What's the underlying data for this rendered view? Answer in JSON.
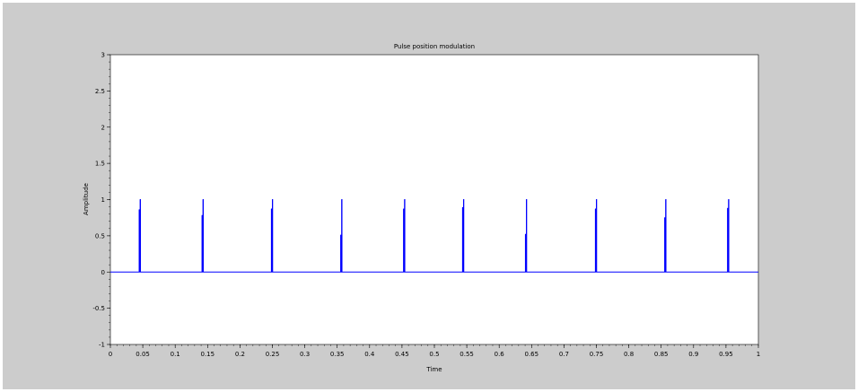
{
  "chart_data": {
    "type": "line",
    "title": "Pulse position modulation",
    "xlabel": "Time",
    "ylabel": "Amplitude",
    "xlim": [
      0,
      1
    ],
    "ylim": [
      -1,
      3
    ],
    "x_ticks": [
      "0",
      "0.05",
      "0.1",
      "0.15",
      "0.2",
      "0.25",
      "0.3",
      "0.35",
      "0.4",
      "0.45",
      "0.5",
      "0.55",
      "0.6",
      "0.65",
      "0.7",
      "0.75",
      "0.8",
      "0.85",
      "0.9",
      "0.95",
      "1"
    ],
    "y_ticks": [
      "-1",
      "-0.5",
      "0",
      "0.5",
      "1",
      "1.5",
      "2",
      "2.5",
      "3"
    ],
    "grid": false,
    "series": [
      {
        "color": "#0000ff",
        "pulses": [
          {
            "t": 0.046,
            "peak": 1.0,
            "sub": 0.86
          },
          {
            "t": 0.143,
            "peak": 1.0,
            "sub": 0.78
          },
          {
            "t": 0.25,
            "peak": 1.0,
            "sub": 0.87
          },
          {
            "t": 0.357,
            "peak": 1.0,
            "sub": 0.51
          },
          {
            "t": 0.454,
            "peak": 1.0,
            "sub": 0.87
          },
          {
            "t": 0.545,
            "peak": 1.0,
            "sub": 0.89
          },
          {
            "t": 0.642,
            "peak": 1.0,
            "sub": 0.52
          },
          {
            "t": 0.75,
            "peak": 1.0,
            "sub": 0.87
          },
          {
            "t": 0.857,
            "peak": 1.0,
            "sub": 0.75
          },
          {
            "t": 0.954,
            "peak": 1.0,
            "sub": 0.88
          }
        ]
      }
    ]
  }
}
